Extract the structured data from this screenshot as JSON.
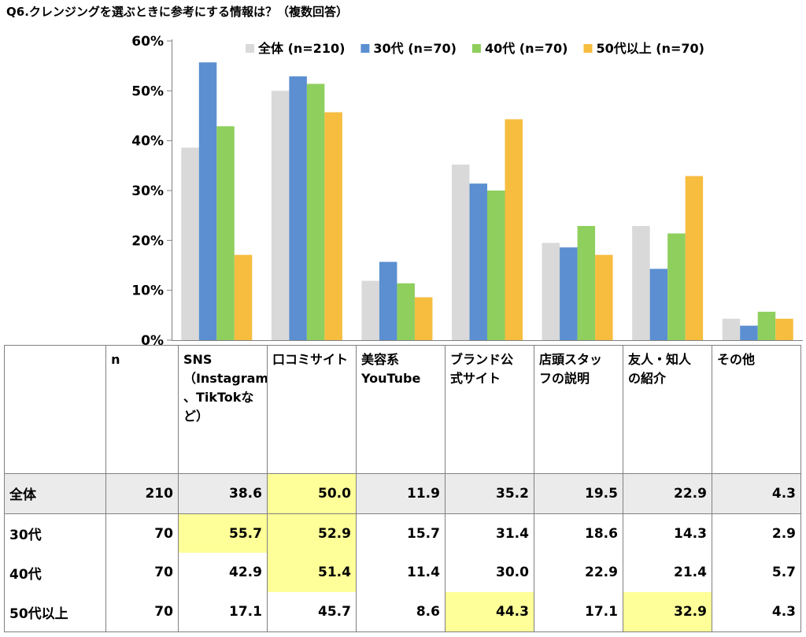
{
  "title": "Q6.クレンジングを選ぶときに参考にする情報は？（複数回答）",
  "colors": {
    "all": "#d9d9d9",
    "s30": "#5b8fd1",
    "s40": "#8fcf5e",
    "s50": "#f6bd3f",
    "highlight": "#ffff99",
    "rowgray": "#ebebeb"
  },
  "chart_data": {
    "type": "bar",
    "categories": [
      "SNS（Instagram、TikTokなど）",
      "口コミサイト",
      "美容系YouTube",
      "ブランド公式サイト",
      "店頭スタッフの説明",
      "友人・知人の紹介",
      "その他"
    ],
    "series": [
      {
        "name": "全体 (n=210)",
        "values": [
          38.6,
          50.0,
          11.9,
          35.2,
          19.5,
          22.9,
          4.3
        ]
      },
      {
        "name": "30代 (n=70)",
        "values": [
          55.7,
          52.9,
          15.7,
          31.4,
          18.6,
          14.3,
          2.9
        ]
      },
      {
        "name": "40代 (n=70)",
        "values": [
          42.9,
          51.4,
          11.4,
          30.0,
          22.9,
          21.4,
          5.7
        ]
      },
      {
        "name": "50代以上 (n=70)",
        "values": [
          17.1,
          45.7,
          8.6,
          44.3,
          17.1,
          32.9,
          4.3
        ]
      }
    ],
    "yticks": [
      "0%",
      "10%",
      "20%",
      "30%",
      "40%",
      "50%",
      "60%"
    ],
    "ylim": [
      0,
      60
    ],
    "grid": false,
    "legend": "top-right"
  },
  "table": {
    "header": [
      "",
      "n",
      "SNS（Instagram、TikTokなど）",
      "口コミサイト",
      "美容系YouTube",
      "ブランド公式サイト",
      "店頭スタッフの説明",
      "友人・知人の紹介",
      "その他"
    ],
    "header_lines": [
      [
        ""
      ],
      [
        "n"
      ],
      [
        "SNS",
        "（Instagram",
        "、TikTokな",
        "ど）"
      ],
      [
        "口コミサイト"
      ],
      [
        "美容系",
        "YouTube"
      ],
      [
        "ブランド公",
        "式サイト"
      ],
      [
        "店頭スタッ",
        "フの説明"
      ],
      [
        "友人・知人",
        "の紹介"
      ],
      [
        "その他"
      ]
    ],
    "rows": [
      {
        "label": "全体",
        "n": "210",
        "values": [
          "38.6",
          "50.0",
          "11.9",
          "35.2",
          "19.5",
          "22.9",
          "4.3"
        ],
        "highlight": [
          1
        ]
      },
      {
        "label": "30代",
        "n": "70",
        "values": [
          "55.7",
          "52.9",
          "15.7",
          "31.4",
          "18.6",
          "14.3",
          "2.9"
        ],
        "highlight": [
          0,
          1
        ]
      },
      {
        "label": "40代",
        "n": "70",
        "values": [
          "42.9",
          "51.4",
          "11.4",
          "30.0",
          "22.9",
          "21.4",
          "5.7"
        ],
        "highlight": [
          1
        ]
      },
      {
        "label": "50代以上",
        "n": "70",
        "values": [
          "17.1",
          "45.7",
          "8.6",
          "44.3",
          "17.1",
          "32.9",
          "4.3"
        ],
        "highlight": [
          3,
          5
        ]
      }
    ]
  }
}
